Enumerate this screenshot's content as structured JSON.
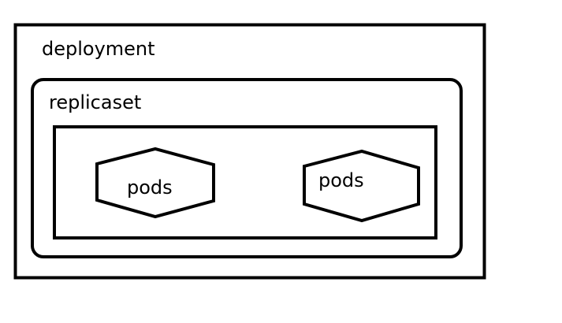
{
  "diagram": {
    "deployment": {
      "label": "deployment"
    },
    "replicaset": {
      "label": "replicaset"
    },
    "pods": [
      {
        "label": "pods"
      },
      {
        "label": "pods"
      }
    ]
  },
  "colors": {
    "stroke": "#000000",
    "background": "#ffffff"
  }
}
